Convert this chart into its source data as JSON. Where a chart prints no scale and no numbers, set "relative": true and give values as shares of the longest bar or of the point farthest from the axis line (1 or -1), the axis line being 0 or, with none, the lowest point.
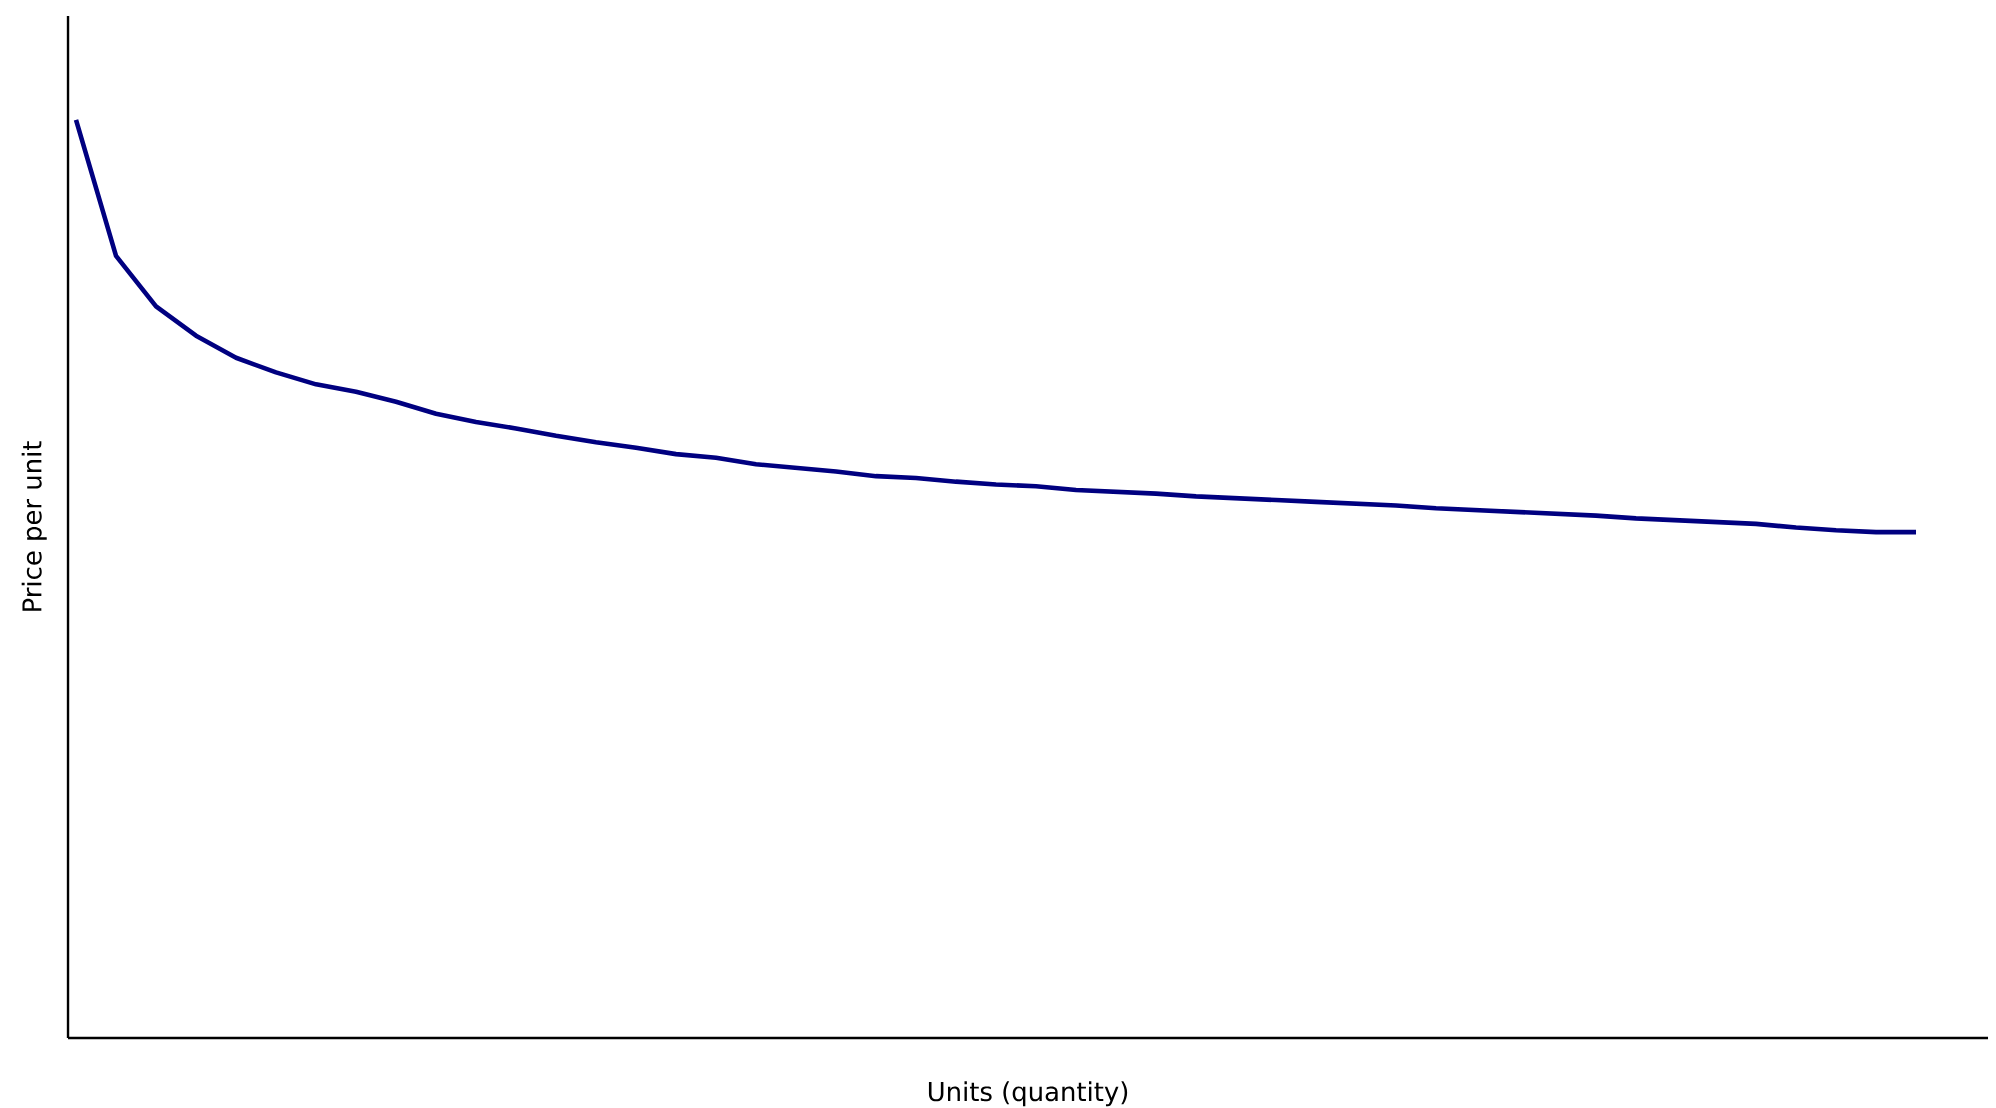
{
  "chart_data": {
    "type": "line",
    "relative": true,
    "xlabel": "Units (quantity)",
    "ylabel": "Price per unit",
    "categories": [
      null,
      null,
      null,
      null,
      null,
      null,
      null,
      null,
      null,
      null,
      null,
      null,
      null,
      null,
      null,
      null,
      null,
      null,
      null,
      null,
      null,
      null,
      null,
      null,
      null,
      null,
      null,
      null,
      null,
      null,
      null,
      null,
      null,
      null,
      null,
      null,
      null,
      null,
      null,
      null,
      null,
      null,
      null,
      null,
      null,
      null,
      null
    ],
    "series": [
      {
        "color": "#000080",
        "values": [
          1.0,
          0.852,
          0.797,
          0.765,
          0.741,
          0.725,
          0.712,
          0.704,
          0.693,
          0.68,
          0.671,
          0.664,
          0.656,
          0.649,
          0.643,
          0.636,
          0.632,
          0.625,
          0.621,
          0.617,
          0.612,
          0.61,
          0.606,
          0.603,
          0.601,
          0.597,
          0.595,
          0.593,
          0.59,
          0.588,
          0.586,
          0.584,
          0.582,
          0.58,
          0.577,
          0.575,
          0.573,
          0.571,
          0.569,
          0.566,
          0.564,
          0.562,
          0.56,
          0.556,
          0.553,
          0.551,
          0.551
        ]
      }
    ]
  }
}
